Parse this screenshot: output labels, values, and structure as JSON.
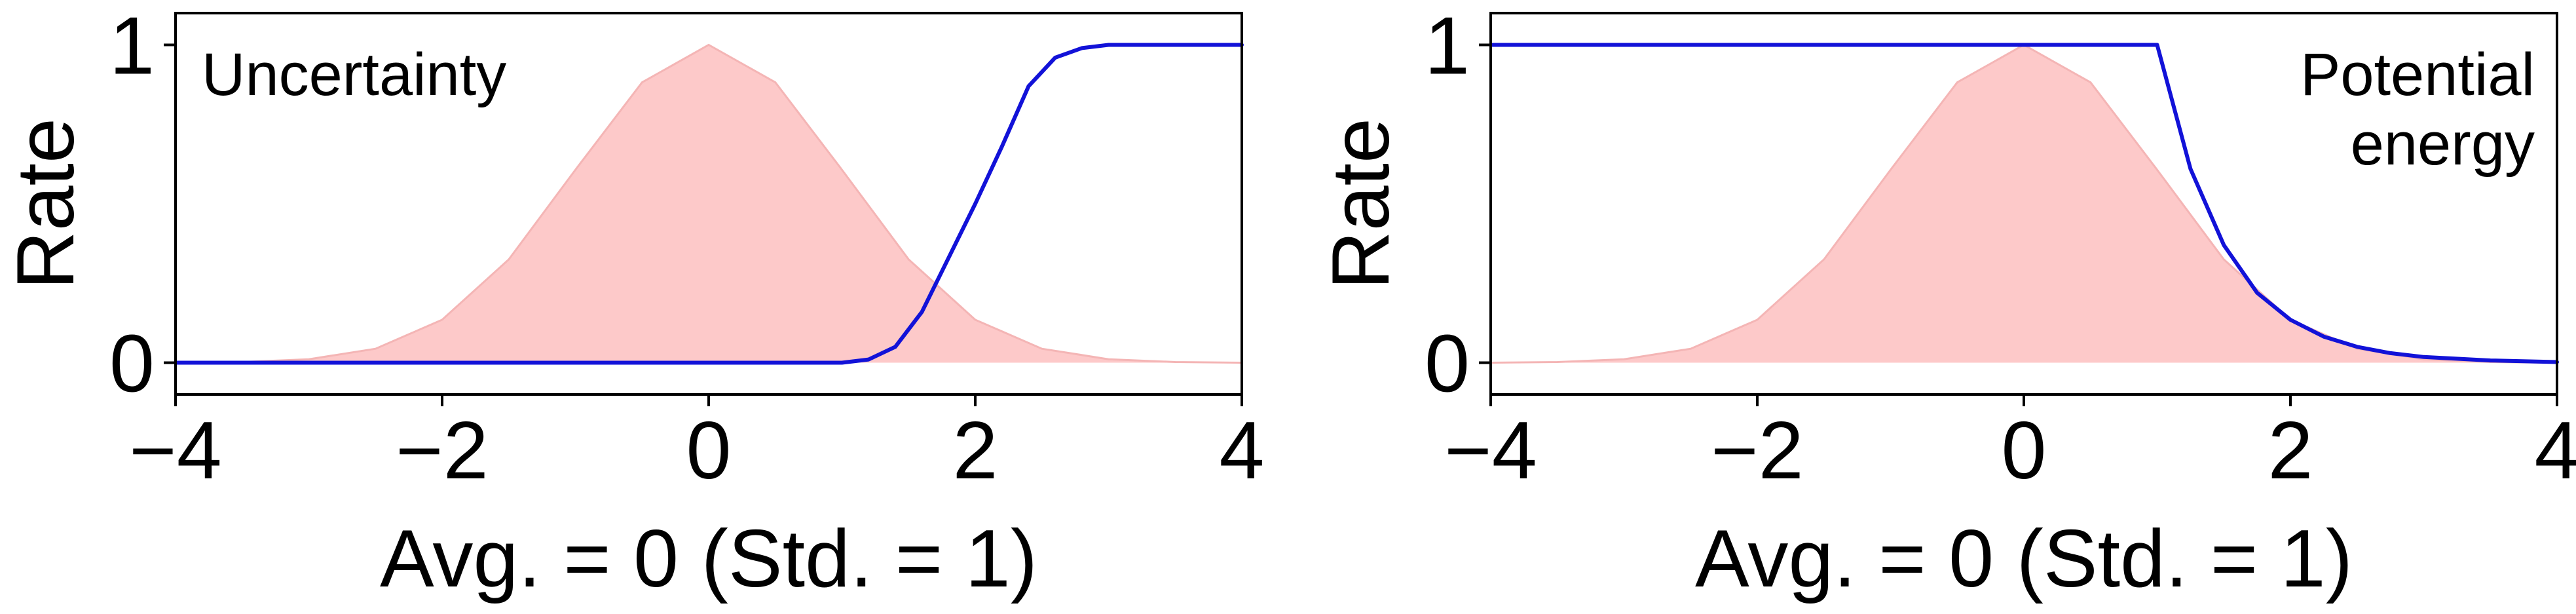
{
  "chart_data": [
    {
      "type": "line",
      "panel_label": "Uncertainty",
      "xlabel": "Avg. = 0 (Std. = 1)",
      "ylabel": "Rate",
      "xlim": [
        -4,
        4
      ],
      "ylim": [
        -0.1,
        1.1
      ],
      "x_ticks": [
        {
          "value": -4,
          "label": "−4"
        },
        {
          "value": -2,
          "label": "−2"
        },
        {
          "value": 0,
          "label": "0"
        },
        {
          "value": 2,
          "label": "2"
        },
        {
          "value": 4,
          "label": "4"
        }
      ],
      "y_ticks": [
        {
          "value": 0,
          "label": "0"
        },
        {
          "value": 1,
          "label": "1"
        }
      ],
      "grid": false,
      "legend": "none",
      "series": [
        {
          "kind": "area",
          "color": "#f4b5b5",
          "fill": "#fdc9c9",
          "x": [
            -4.0,
            -3.5,
            -3.0,
            -2.5,
            -2.0,
            -1.5,
            -1.0,
            -0.5,
            0.0,
            0.5,
            1.0,
            1.5,
            2.0,
            2.5,
            3.0,
            3.5,
            4.0
          ],
          "y": [
            0.0,
            0.002,
            0.011,
            0.044,
            0.135,
            0.325,
            0.607,
            0.882,
            1.0,
            0.882,
            0.607,
            0.325,
            0.135,
            0.044,
            0.011,
            0.002,
            0.0
          ]
        },
        {
          "kind": "line",
          "color": "#1212d8",
          "x": [
            -4.0,
            1.0,
            1.2,
            1.4,
            1.6,
            1.8,
            2.0,
            2.2,
            2.4,
            2.6,
            2.8,
            3.0,
            4.0
          ],
          "y": [
            0.0,
            0.0,
            0.01,
            0.05,
            0.16,
            0.33,
            0.5,
            0.68,
            0.87,
            0.96,
            0.99,
            1.0,
            1.0
          ]
        }
      ]
    },
    {
      "type": "line",
      "panel_label": "Potential\nenergy",
      "xlabel": "Avg. = 0 (Std. = 1)",
      "ylabel": "Rate",
      "xlim": [
        -4,
        4
      ],
      "ylim": [
        -0.1,
        1.1
      ],
      "x_ticks": [
        {
          "value": -4,
          "label": "−4"
        },
        {
          "value": -2,
          "label": "−2"
        },
        {
          "value": 0,
          "label": "0"
        },
        {
          "value": 2,
          "label": "2"
        },
        {
          "value": 4,
          "label": "4"
        }
      ],
      "y_ticks": [
        {
          "value": 0,
          "label": "0"
        },
        {
          "value": 1,
          "label": "1"
        }
      ],
      "grid": false,
      "legend": "none",
      "series": [
        {
          "kind": "area",
          "color": "#f4b5b5",
          "fill": "#fdc9c9",
          "x": [
            -4.0,
            -3.5,
            -3.0,
            -2.5,
            -2.0,
            -1.5,
            -1.0,
            -0.5,
            0.0,
            0.5,
            1.0,
            1.5,
            2.0,
            2.5,
            3.0,
            3.5,
            4.0
          ],
          "y": [
            0.0,
            0.002,
            0.011,
            0.044,
            0.135,
            0.325,
            0.607,
            0.882,
            1.0,
            0.882,
            0.607,
            0.325,
            0.135,
            0.044,
            0.011,
            0.002,
            0.0
          ]
        },
        {
          "kind": "line",
          "color": "#1212d8",
          "x": [
            -4.0,
            1.0,
            1.25,
            1.5,
            1.75,
            2.0,
            2.25,
            2.5,
            2.75,
            3.0,
            3.5,
            4.0
          ],
          "y": [
            1.0,
            1.0,
            0.61,
            0.37,
            0.22,
            0.135,
            0.082,
            0.05,
            0.03,
            0.018,
            0.007,
            0.002
          ]
        }
      ]
    }
  ]
}
